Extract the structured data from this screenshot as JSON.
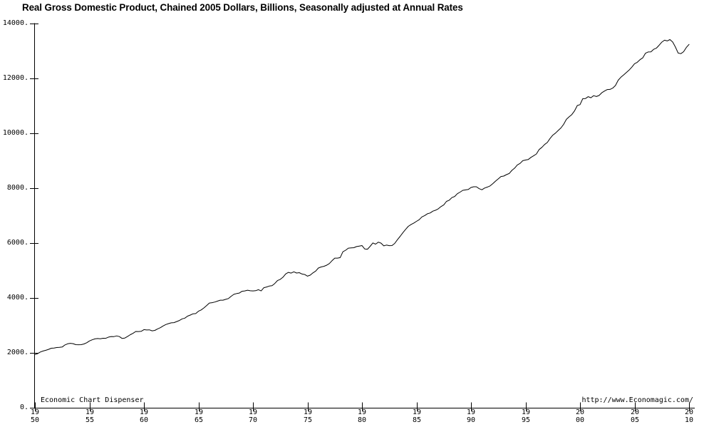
{
  "title": "Real Gross Domestic Product, Chained 2005 Dollars, Billions, Seasonally adjusted at Annual Rates",
  "watermarks": {
    "left": "Economic Chart Dispenser",
    "right": "http://www.Economagic.com/"
  },
  "colors": {
    "background": "#ffffff",
    "line": "#000000",
    "text": "#000000"
  },
  "chart_data": {
    "type": "line",
    "title": "Real Gross Domestic Product, Chained 2005 Dollars, Billions, Seasonally adjusted at Annual Rates",
    "xlabel": "",
    "ylabel": "",
    "xlim": [
      1950,
      2010.5
    ],
    "ylim": [
      0,
      14000
    ],
    "grid": false,
    "legend": "none",
    "x_start": 1950.0,
    "x_step_years": 0.25,
    "x_unit": "year (quarterly)",
    "y_unit": "billions of chained 2005 dollars",
    "y_ticks": [
      {
        "label": "0.",
        "value": 0
      },
      {
        "label": "2000.",
        "value": 2000
      },
      {
        "label": "4000.",
        "value": 4000
      },
      {
        "label": "6000.",
        "value": 6000
      },
      {
        "label": "8000.",
        "value": 8000
      },
      {
        "label": "10000.",
        "value": 10000
      },
      {
        "label": "12000.",
        "value": 12000
      },
      {
        "label": "14000.",
        "value": 14000
      }
    ],
    "x_ticks": [
      {
        "line1": "19",
        "line2": "50",
        "year": 1950
      },
      {
        "line1": "19",
        "line2": "55",
        "year": 1955
      },
      {
        "line1": "19",
        "line2": "60",
        "year": 1960
      },
      {
        "line1": "19",
        "line2": "65",
        "year": 1965
      },
      {
        "line1": "19",
        "line2": "70",
        "year": 1970
      },
      {
        "line1": "19",
        "line2": "75",
        "year": 1975
      },
      {
        "line1": "19",
        "line2": "80",
        "year": 1980
      },
      {
        "line1": "19",
        "line2": "85",
        "year": 1985
      },
      {
        "line1": "19",
        "line2": "90",
        "year": 1990
      },
      {
        "line1": "19",
        "line2": "95",
        "year": 1995
      },
      {
        "line1": "20",
        "line2": "00",
        "year": 2000
      },
      {
        "line1": "20",
        "line2": "05",
        "year": 2005
      },
      {
        "line1": "20",
        "line2": "10",
        "year": 2010
      }
    ],
    "values": [
      1939,
      1971,
      2030,
      2067,
      2093,
      2128,
      2169,
      2173,
      2195,
      2200,
      2214,
      2288,
      2331,
      2349,
      2335,
      2299,
      2296,
      2298,
      2324,
      2368,
      2435,
      2476,
      2508,
      2523,
      2512,
      2533,
      2531,
      2573,
      2594,
      2593,
      2619,
      2592,
      2524,
      2541,
      2601,
      2662,
      2712,
      2778,
      2776,
      2785,
      2848,
      2834,
      2839,
      2803,
      2819,
      2872,
      2918,
      2978,
      3031,
      3065,
      3093,
      3101,
      3141,
      3180,
      3240,
      3265,
      3338,
      3376,
      3423,
      3432,
      3516,
      3564,
      3636,
      3724,
      3815,
      3828,
      3853,
      3885,
      3919,
      3920,
      3951,
      3980,
      4063,
      4132,
      4160,
      4178,
      4244,
      4257,
      4283,
      4263,
      4257,
      4264,
      4302,
      4256,
      4374,
      4399,
      4433,
      4446,
      4526,
      4633,
      4678,
      4755,
      4876,
      4933,
      4906,
      4953,
      4910,
      4923,
      4874,
      4854,
      4795,
      4832,
      4913,
      4978,
      5091,
      5129,
      5154,
      5192,
      5252,
      5356,
      5452,
      5451,
      5469,
      5684,
      5740,
      5816,
      5826,
      5831,
      5873,
      5890,
      5909,
      5787,
      5777,
      5884,
      6006,
      5961,
      6034,
      5998,
      5900,
      5928,
      5906,
      5908,
      5987,
      6122,
      6247,
      6379,
      6499,
      6611,
      6677,
      6730,
      6792,
      6853,
      6953,
      7003,
      7068,
      7096,
      7164,
      7198,
      7250,
      7330,
      7392,
      7520,
      7561,
      7657,
      7698,
      7800,
      7858,
      7921,
      7938,
      7952,
      8026,
      8053,
      8053,
      7982,
      7943,
      8004,
      8042,
      8082,
      8167,
      8256,
      8339,
      8427,
      8441,
      8493,
      8534,
      8650,
      8731,
      8847,
      8904,
      9003,
      9025,
      9045,
      9121,
      9184,
      9247,
      9407,
      9489,
      9593,
      9666,
      9810,
      9933,
      10009,
      10103,
      10194,
      10329,
      10508,
      10601,
      10684,
      10820,
      11014,
      11043,
      11259,
      11268,
      11335,
      11297,
      11371,
      11340,
      11380,
      11478,
      11539,
      11596,
      11599,
      11646,
      11739,
      11936,
      12043,
      12128,
      12214,
      12304,
      12410,
      12534,
      12588,
      12683,
      12749,
      12916,
      12963,
      12966,
      13061,
      13100,
      13204,
      13321,
      13391,
      13367,
      13415,
      13325,
      13142,
      12925,
      12902,
      12973,
      13126,
      13238
    ]
  }
}
